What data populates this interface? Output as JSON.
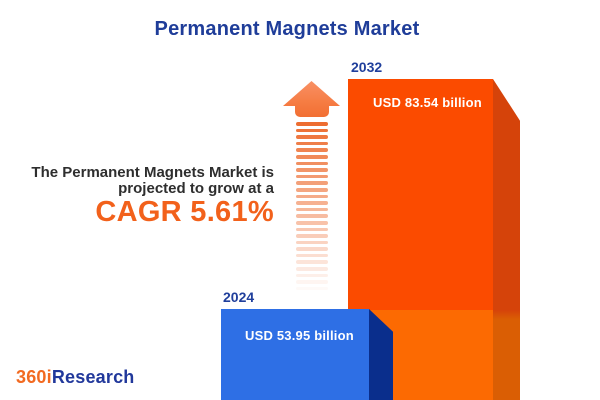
{
  "page": {
    "background": "#FFFFFF"
  },
  "title": "Permanent Magnets Market",
  "tagline": {
    "line1": "The Permanent Magnets Market is",
    "line2": "projected to grow at a",
    "cagr_label": "CAGR 5.61%"
  },
  "brand": {
    "name_part1": "360i",
    "name_part2": "Research"
  },
  "icons": {
    "growth_arrow": "upward arrow built of horizontal stripes fading toward the bottom"
  },
  "colors": {
    "title_blue": "#1F3D99",
    "accent_orange": "#F2611B",
    "tagline_text": "#2E2E2E",
    "bar_2024_front": "#2E6FE5",
    "bar_2024_side": "#0A2E8C",
    "bar_2032_front_upper": "#FB4B00",
    "bar_2032_front_lower": "#FC6A02",
    "bar_2032_side_upper": "#D5430A",
    "bar_2032_side_lower": "#DA5E04",
    "arrow_orange": "#ED6A2D",
    "value_text": "#FFFFFF",
    "logo_orange": "#F26A21",
    "logo_blue": "#21389B"
  },
  "chart_data": {
    "type": "bar",
    "title": "Permanent Magnets Market",
    "categories": [
      "2024",
      "2032"
    ],
    "values": [
      53.95,
      83.54
    ],
    "value_labels": [
      "USD 53.95 billion",
      "USD 83.54 billion"
    ],
    "unit": "USD billion",
    "cagr_percent": 5.61,
    "series_colors": [
      "#2E6FE5",
      "#FB4B00"
    ],
    "legend": "none",
    "grid": false,
    "annotation": "The Permanent Magnets Market is projected to grow at a CAGR 5.61%"
  }
}
